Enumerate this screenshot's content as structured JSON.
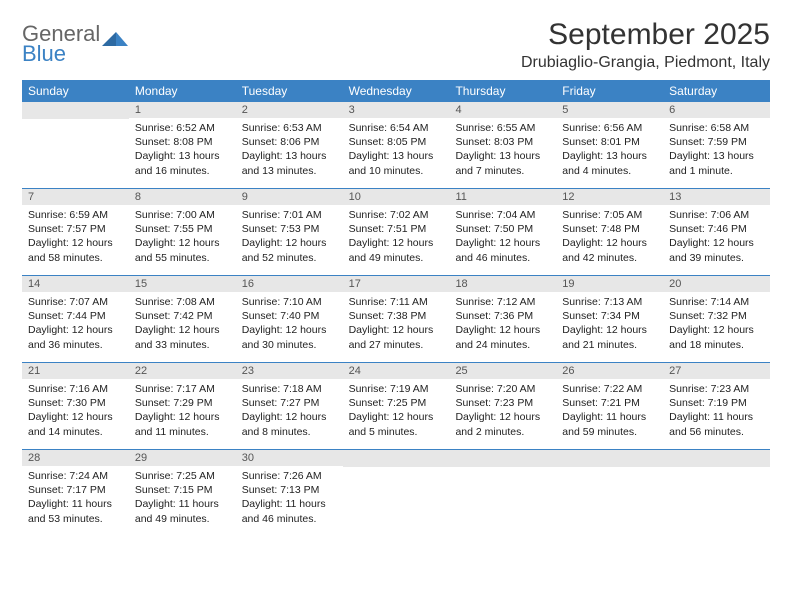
{
  "brand": {
    "name_a": "General",
    "name_b": "Blue"
  },
  "title": "September 2025",
  "location": "Drubiaglio-Grangia, Piedmont, Italy",
  "colors": {
    "header_bar": "#3b82c4",
    "daynum_bg": "#e7e7e7",
    "text": "#222222",
    "title_text": "#333333"
  },
  "days_of_week": [
    "Sunday",
    "Monday",
    "Tuesday",
    "Wednesday",
    "Thursday",
    "Friday",
    "Saturday"
  ],
  "weeks": [
    [
      {
        "num": "",
        "sunrise": "",
        "sunset": "",
        "daylight": ""
      },
      {
        "num": "1",
        "sunrise": "Sunrise: 6:52 AM",
        "sunset": "Sunset: 8:08 PM",
        "daylight": "Daylight: 13 hours and 16 minutes."
      },
      {
        "num": "2",
        "sunrise": "Sunrise: 6:53 AM",
        "sunset": "Sunset: 8:06 PM",
        "daylight": "Daylight: 13 hours and 13 minutes."
      },
      {
        "num": "3",
        "sunrise": "Sunrise: 6:54 AM",
        "sunset": "Sunset: 8:05 PM",
        "daylight": "Daylight: 13 hours and 10 minutes."
      },
      {
        "num": "4",
        "sunrise": "Sunrise: 6:55 AM",
        "sunset": "Sunset: 8:03 PM",
        "daylight": "Daylight: 13 hours and 7 minutes."
      },
      {
        "num": "5",
        "sunrise": "Sunrise: 6:56 AM",
        "sunset": "Sunset: 8:01 PM",
        "daylight": "Daylight: 13 hours and 4 minutes."
      },
      {
        "num": "6",
        "sunrise": "Sunrise: 6:58 AM",
        "sunset": "Sunset: 7:59 PM",
        "daylight": "Daylight: 13 hours and 1 minute."
      }
    ],
    [
      {
        "num": "7",
        "sunrise": "Sunrise: 6:59 AM",
        "sunset": "Sunset: 7:57 PM",
        "daylight": "Daylight: 12 hours and 58 minutes."
      },
      {
        "num": "8",
        "sunrise": "Sunrise: 7:00 AM",
        "sunset": "Sunset: 7:55 PM",
        "daylight": "Daylight: 12 hours and 55 minutes."
      },
      {
        "num": "9",
        "sunrise": "Sunrise: 7:01 AM",
        "sunset": "Sunset: 7:53 PM",
        "daylight": "Daylight: 12 hours and 52 minutes."
      },
      {
        "num": "10",
        "sunrise": "Sunrise: 7:02 AM",
        "sunset": "Sunset: 7:51 PM",
        "daylight": "Daylight: 12 hours and 49 minutes."
      },
      {
        "num": "11",
        "sunrise": "Sunrise: 7:04 AM",
        "sunset": "Sunset: 7:50 PM",
        "daylight": "Daylight: 12 hours and 46 minutes."
      },
      {
        "num": "12",
        "sunrise": "Sunrise: 7:05 AM",
        "sunset": "Sunset: 7:48 PM",
        "daylight": "Daylight: 12 hours and 42 minutes."
      },
      {
        "num": "13",
        "sunrise": "Sunrise: 7:06 AM",
        "sunset": "Sunset: 7:46 PM",
        "daylight": "Daylight: 12 hours and 39 minutes."
      }
    ],
    [
      {
        "num": "14",
        "sunrise": "Sunrise: 7:07 AM",
        "sunset": "Sunset: 7:44 PM",
        "daylight": "Daylight: 12 hours and 36 minutes."
      },
      {
        "num": "15",
        "sunrise": "Sunrise: 7:08 AM",
        "sunset": "Sunset: 7:42 PM",
        "daylight": "Daylight: 12 hours and 33 minutes."
      },
      {
        "num": "16",
        "sunrise": "Sunrise: 7:10 AM",
        "sunset": "Sunset: 7:40 PM",
        "daylight": "Daylight: 12 hours and 30 minutes."
      },
      {
        "num": "17",
        "sunrise": "Sunrise: 7:11 AM",
        "sunset": "Sunset: 7:38 PM",
        "daylight": "Daylight: 12 hours and 27 minutes."
      },
      {
        "num": "18",
        "sunrise": "Sunrise: 7:12 AM",
        "sunset": "Sunset: 7:36 PM",
        "daylight": "Daylight: 12 hours and 24 minutes."
      },
      {
        "num": "19",
        "sunrise": "Sunrise: 7:13 AM",
        "sunset": "Sunset: 7:34 PM",
        "daylight": "Daylight: 12 hours and 21 minutes."
      },
      {
        "num": "20",
        "sunrise": "Sunrise: 7:14 AM",
        "sunset": "Sunset: 7:32 PM",
        "daylight": "Daylight: 12 hours and 18 minutes."
      }
    ],
    [
      {
        "num": "21",
        "sunrise": "Sunrise: 7:16 AM",
        "sunset": "Sunset: 7:30 PM",
        "daylight": "Daylight: 12 hours and 14 minutes."
      },
      {
        "num": "22",
        "sunrise": "Sunrise: 7:17 AM",
        "sunset": "Sunset: 7:29 PM",
        "daylight": "Daylight: 12 hours and 11 minutes."
      },
      {
        "num": "23",
        "sunrise": "Sunrise: 7:18 AM",
        "sunset": "Sunset: 7:27 PM",
        "daylight": "Daylight: 12 hours and 8 minutes."
      },
      {
        "num": "24",
        "sunrise": "Sunrise: 7:19 AM",
        "sunset": "Sunset: 7:25 PM",
        "daylight": "Daylight: 12 hours and 5 minutes."
      },
      {
        "num": "25",
        "sunrise": "Sunrise: 7:20 AM",
        "sunset": "Sunset: 7:23 PM",
        "daylight": "Daylight: 12 hours and 2 minutes."
      },
      {
        "num": "26",
        "sunrise": "Sunrise: 7:22 AM",
        "sunset": "Sunset: 7:21 PM",
        "daylight": "Daylight: 11 hours and 59 minutes."
      },
      {
        "num": "27",
        "sunrise": "Sunrise: 7:23 AM",
        "sunset": "Sunset: 7:19 PM",
        "daylight": "Daylight: 11 hours and 56 minutes."
      }
    ],
    [
      {
        "num": "28",
        "sunrise": "Sunrise: 7:24 AM",
        "sunset": "Sunset: 7:17 PM",
        "daylight": "Daylight: 11 hours and 53 minutes."
      },
      {
        "num": "29",
        "sunrise": "Sunrise: 7:25 AM",
        "sunset": "Sunset: 7:15 PM",
        "daylight": "Daylight: 11 hours and 49 minutes."
      },
      {
        "num": "30",
        "sunrise": "Sunrise: 7:26 AM",
        "sunset": "Sunset: 7:13 PM",
        "daylight": "Daylight: 11 hours and 46 minutes."
      },
      {
        "num": "",
        "sunrise": "",
        "sunset": "",
        "daylight": ""
      },
      {
        "num": "",
        "sunrise": "",
        "sunset": "",
        "daylight": ""
      },
      {
        "num": "",
        "sunrise": "",
        "sunset": "",
        "daylight": ""
      },
      {
        "num": "",
        "sunrise": "",
        "sunset": "",
        "daylight": ""
      }
    ]
  ]
}
